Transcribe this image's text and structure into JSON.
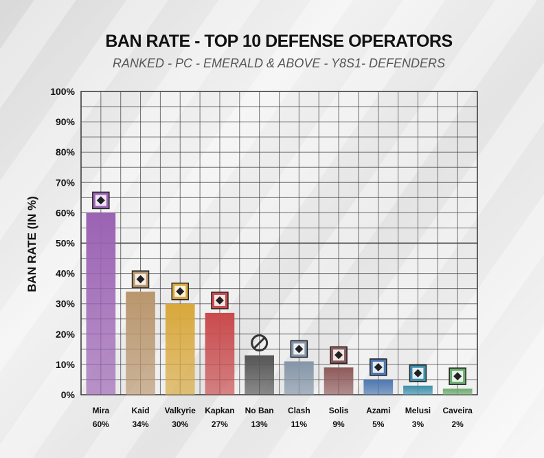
{
  "chart_data": {
    "type": "bar",
    "title": "BAN RATE - TOP 10 DEFENSE OPERATORS",
    "subtitle": "RANKED - PC - EMERALD & ABOVE - Y8S1- DEFENDERS",
    "ylabel": "BAN RATE (IN %)",
    "xlabel": "",
    "ylim": [
      0,
      100
    ],
    "yticks": [
      "0%",
      "10%",
      "20%",
      "30%",
      "40%",
      "50%",
      "60%",
      "70%",
      "80%",
      "90%",
      "100%"
    ],
    "grid": true,
    "categories": [
      "Mira",
      "Kaid",
      "Valkyrie",
      "Kapkan",
      "No Ban",
      "Clash",
      "Solis",
      "Azami",
      "Melusi",
      "Caveira"
    ],
    "values": [
      60,
      34,
      30,
      27,
      13,
      11,
      9,
      5,
      3,
      2
    ],
    "value_labels": [
      "60%",
      "34%",
      "30%",
      "27%",
      "13%",
      "11%",
      "9%",
      "5%",
      "3%",
      "2%"
    ],
    "colors": [
      "#9b62b3",
      "#b9966d",
      "#d9a83c",
      "#c94a4c",
      "#555555",
      "#8596a8",
      "#8e5a5a",
      "#4d77b0",
      "#3d8faa",
      "#6cab6e"
    ],
    "icons": [
      "mira-icon",
      "kaid-icon",
      "valkyrie-icon",
      "kapkan-icon",
      "no-ban-icon",
      "clash-icon",
      "solis-icon",
      "azami-icon",
      "melusi-icon",
      "caveira-icon"
    ]
  }
}
